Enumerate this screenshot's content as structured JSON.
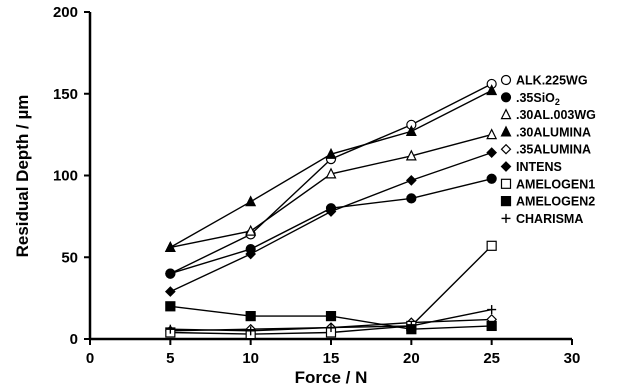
{
  "chart_data": {
    "type": "line",
    "xlabel": "Force / N",
    "ylabel": "Residual Depth / µm",
    "xlim": [
      0,
      30
    ],
    "ylim": [
      0,
      200
    ],
    "x_ticks": [
      0,
      5,
      10,
      15,
      20,
      25,
      30
    ],
    "y_ticks": [
      0,
      50,
      100,
      150,
      200
    ],
    "x_tick_labels": [
      "0",
      "5",
      "10",
      "15",
      "20",
      "25",
      "30"
    ],
    "y_tick_labels": [
      "0",
      "50",
      "100",
      "150",
      "200"
    ],
    "grid": false,
    "legend_position": "right",
    "x": [
      5,
      10,
      15,
      20,
      25
    ],
    "series": [
      {
        "name": "ALK.225WG",
        "marker": "circle-open",
        "values": [
          40,
          64,
          110,
          131,
          156
        ]
      },
      {
        "name": ".35SiO",
        "sub": "2",
        "marker": "circle-filled",
        "values": [
          40,
          55,
          80,
          86,
          98
        ]
      },
      {
        "name": ".30AL.003WG",
        "marker": "triangle-open",
        "values": [
          56,
          66,
          101,
          112,
          125
        ]
      },
      {
        "name": ".30ALUMINA",
        "marker": "triangle-filled",
        "values": [
          56,
          84,
          113,
          127,
          152
        ]
      },
      {
        "name": ".35ALUMINA",
        "marker": "diamond-open",
        "values": [
          5,
          6,
          7,
          10,
          12
        ]
      },
      {
        "name": "INTENS",
        "marker": "diamond-filled",
        "values": [
          29,
          52,
          78,
          97,
          114
        ]
      },
      {
        "name": "AMELOGEN1",
        "marker": "square-open",
        "values": [
          4,
          3,
          4,
          8,
          57
        ]
      },
      {
        "name": "AMELOGEN2",
        "marker": "square-filled",
        "values": [
          20,
          14,
          14,
          6,
          8
        ]
      },
      {
        "name": "CHARISMA",
        "marker": "plus",
        "values": [
          6,
          5,
          7,
          8,
          18
        ]
      }
    ]
  }
}
